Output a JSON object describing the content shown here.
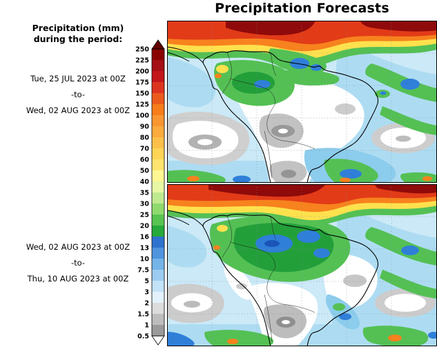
{
  "title": "Precipitation Forecasts",
  "legend": {
    "heading_line1": "Precipitation (mm)",
    "heading_line2": "during the period:"
  },
  "periods": [
    {
      "from": "Tue, 25 JUL 2023 at 00Z",
      "separator": "-to-",
      "to": "Wed, 02 AUG 2023 at 00Z"
    },
    {
      "from": "Wed, 02 AUG 2023 at 00Z",
      "separator": "-to-",
      "to": "Thu, 10 AUG 2023 at 00Z"
    }
  ],
  "colorbar": {
    "tick_labels": [
      "250",
      "225",
      "200",
      "175",
      "150",
      "125",
      "100",
      "90",
      "80",
      "70",
      "60",
      "50",
      "40",
      "35",
      "30",
      "25",
      "20",
      "16",
      "13",
      "10",
      "7.5",
      "5",
      "3",
      "2",
      "1.5",
      "1",
      "0.5"
    ],
    "colors_top_to_bottom": [
      "#610000",
      "#8a0303",
      "#a50f15",
      "#c3161b",
      "#dd3420",
      "#ec5b1e",
      "#f67d1a",
      "#fa9632",
      "#fbab3e",
      "#fcc04a",
      "#fdd455",
      "#fee46e",
      "#fff892",
      "#e7f7a3",
      "#c0ea90",
      "#90da6e",
      "#57c452",
      "#27a93b",
      "#2e72cf",
      "#4f94dd",
      "#74b4e8",
      "#9cccf0",
      "#c2e2f7",
      "#e2f1fb",
      "#dcdcdc",
      "#bdbdbd",
      "#9a9a9a",
      "#ffffff"
    ]
  }
}
